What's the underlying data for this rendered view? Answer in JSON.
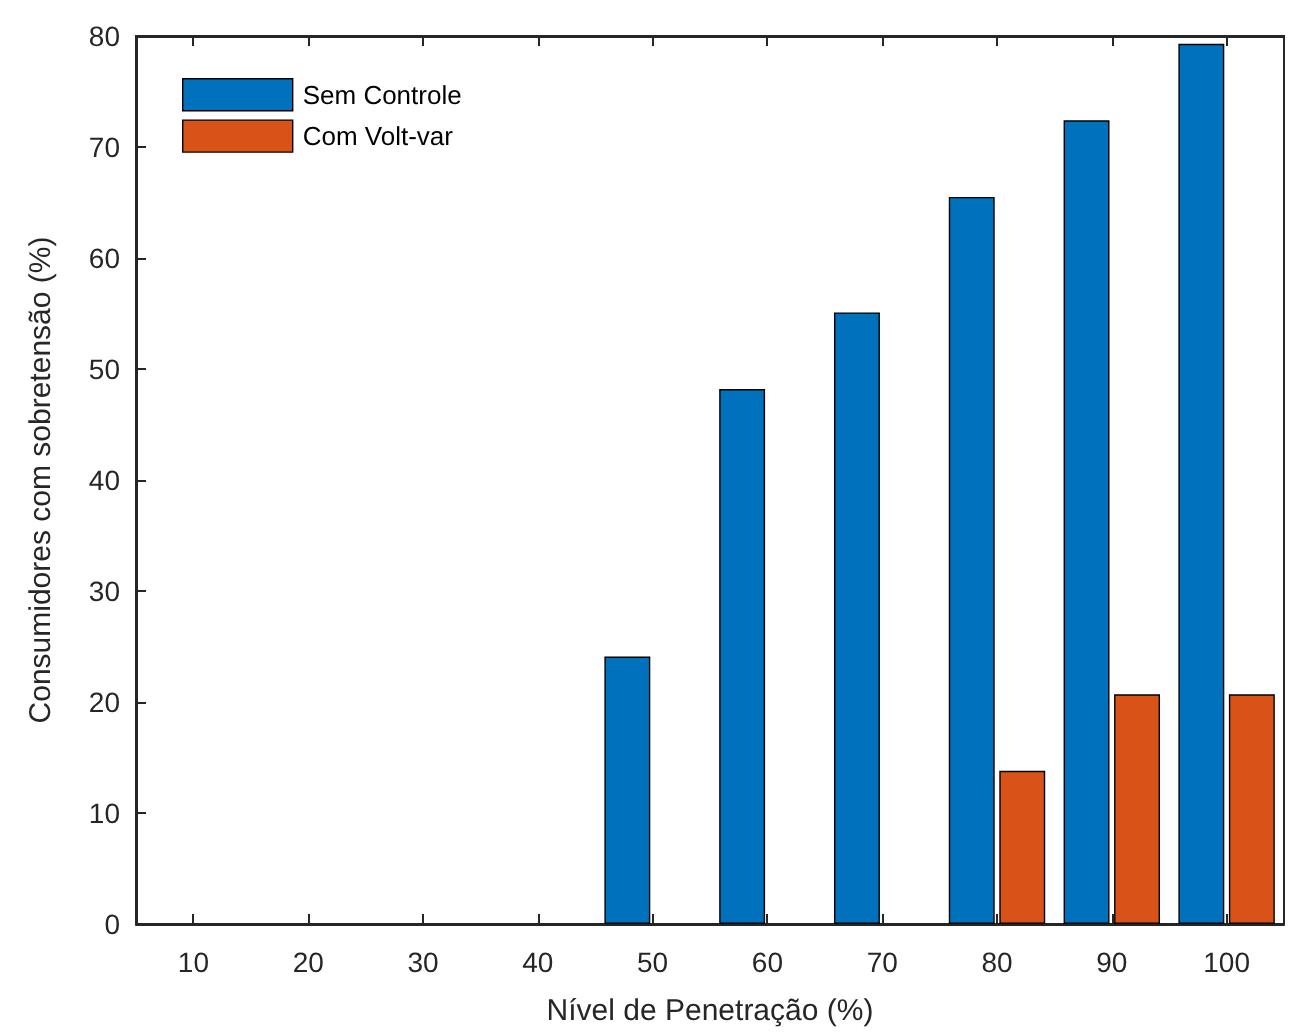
{
  "chart_data": {
    "type": "bar",
    "xlabel": "Nível de Penetração (%)",
    "ylabel": "Consumidores com sobretensão (%)",
    "categories": [
      "10",
      "20",
      "30",
      "40",
      "50",
      "60",
      "70",
      "80",
      "90",
      "100"
    ],
    "series": [
      {
        "name": "Sem Controle",
        "color": "#0072bd",
        "values": [
          null,
          null,
          null,
          null,
          24.1,
          48.2,
          55.1,
          65.5,
          72.4,
          79.3
        ]
      },
      {
        "name": "Com Volt-var",
        "color": "#d95319",
        "values": [
          null,
          null,
          null,
          null,
          null,
          null,
          null,
          13.8,
          20.7,
          20.7
        ]
      }
    ],
    "ylim": [
      0,
      80
    ],
    "yticks": [
      0,
      10,
      20,
      30,
      40,
      50,
      60,
      70,
      80
    ],
    "grid": false,
    "legend": "top left"
  }
}
